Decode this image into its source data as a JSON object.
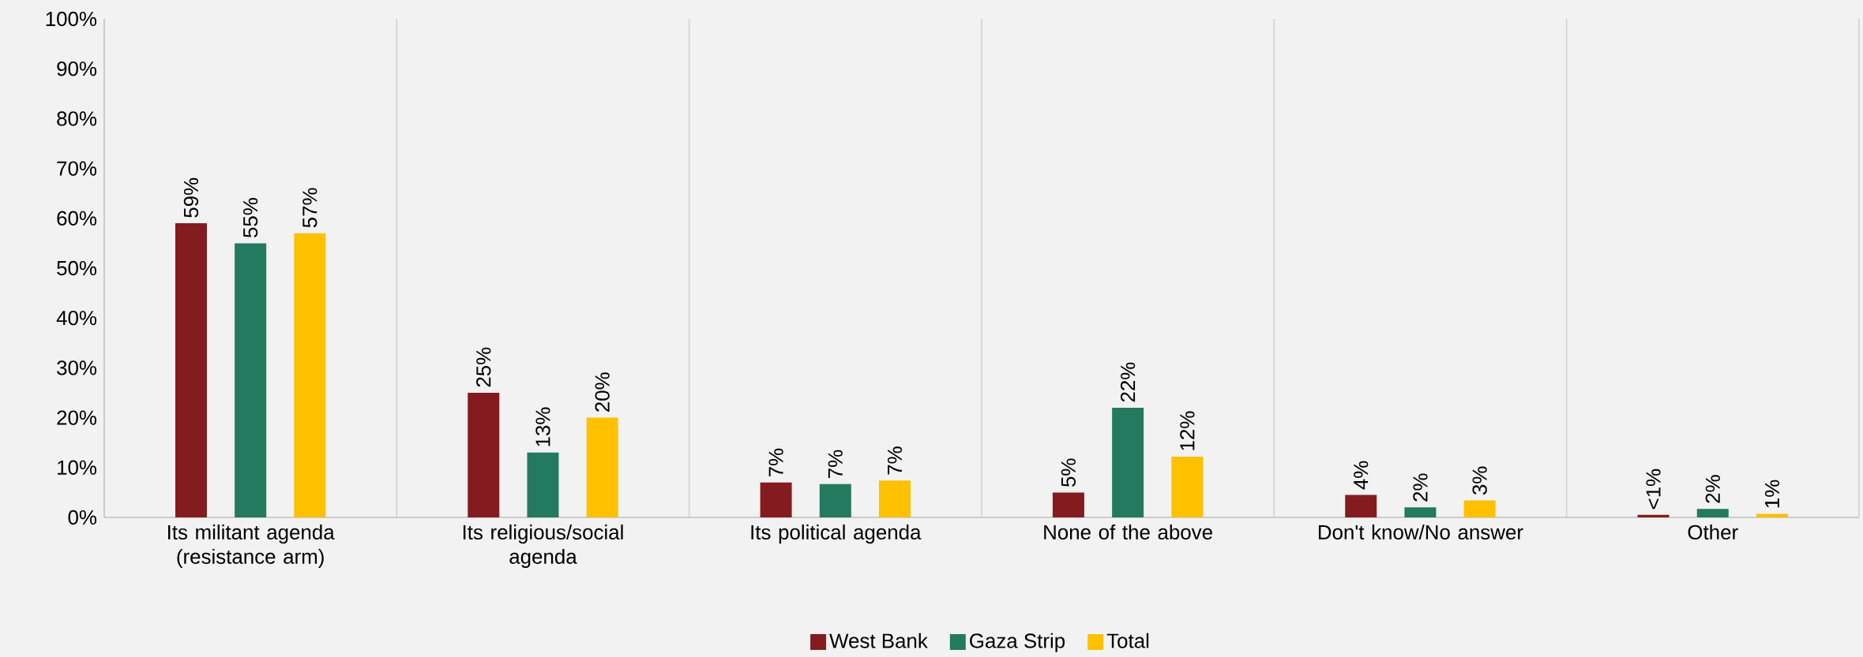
{
  "chart_data": {
    "type": "bar",
    "categories": [
      "Its militant agenda (resistance arm)",
      "Its religious/social agenda",
      "Its political agenda",
      "None of the above",
      "Don't know/No answer",
      "Other"
    ],
    "series": [
      {
        "name": "West Bank",
        "color": "#841b1f",
        "values": [
          59,
          25,
          7,
          5,
          4.5,
          0.5
        ],
        "value_labels": [
          "59%",
          "25%",
          "7%",
          "5%",
          "4%",
          "<1%"
        ]
      },
      {
        "name": "Gaza Strip",
        "color": "#247a5e",
        "values": [
          55,
          13,
          6.7,
          22,
          2,
          1.7
        ],
        "value_labels": [
          "55%",
          "13%",
          "7%",
          "22%",
          "2%",
          "2%"
        ]
      },
      {
        "name": "Total",
        "color": "#ffc000",
        "values": [
          57,
          20,
          7.4,
          12.2,
          3.4,
          0.7
        ],
        "value_labels": [
          "57%",
          "20%",
          "7%",
          "12%",
          "3%",
          "1%"
        ]
      }
    ],
    "ylim": [
      0,
      100
    ],
    "yticks": [
      {
        "value": 0,
        "label": "0%"
      },
      {
        "value": 10,
        "label": "10%"
      },
      {
        "value": 20,
        "label": "20%"
      },
      {
        "value": 30,
        "label": "30%"
      },
      {
        "value": 40,
        "label": "40%"
      },
      {
        "value": 50,
        "label": "50%"
      },
      {
        "value": 60,
        "label": "60%"
      },
      {
        "value": 70,
        "label": "70%"
      },
      {
        "value": 80,
        "label": "80%"
      },
      {
        "value": 90,
        "label": "90%"
      },
      {
        "value": 100,
        "label": "100%"
      }
    ],
    "grid": "x",
    "legend": "bottom"
  }
}
